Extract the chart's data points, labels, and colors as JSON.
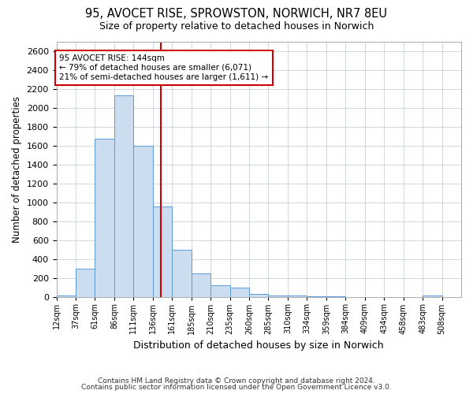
{
  "title": "95, AVOCET RISE, SPROWSTON, NORWICH, NR7 8EU",
  "subtitle": "Size of property relative to detached houses in Norwich",
  "xlabel": "Distribution of detached houses by size in Norwich",
  "ylabel": "Number of detached properties",
  "bin_labels": [
    "12sqm",
    "37sqm",
    "61sqm",
    "86sqm",
    "111sqm",
    "136sqm",
    "161sqm",
    "185sqm",
    "210sqm",
    "235sqm",
    "260sqm",
    "285sqm",
    "310sqm",
    "334sqm",
    "359sqm",
    "384sqm",
    "409sqm",
    "434sqm",
    "458sqm",
    "483sqm",
    "508sqm"
  ],
  "bar_heights": [
    20,
    300,
    1670,
    2130,
    1600,
    960,
    500,
    255,
    125,
    100,
    35,
    20,
    18,
    10,
    8,
    5,
    3,
    3,
    2,
    20,
    0
  ],
  "bar_color": "#ccddf0",
  "bar_edgecolor": "#5b9bd5",
  "property_line_bin": 5.4,
  "property_line_color": "#cc0000",
  "annotation_text_line1": "95 AVOCET RISE: 144sqm",
  "annotation_text_line2": "← 79% of detached houses are smaller (6,071)",
  "annotation_text_line3": "21% of semi-detached houses are larger (1,611) →",
  "annotation_box_edgecolor": "#cc0000",
  "annotation_box_facecolor": "#ffffff",
  "ylim": [
    0,
    2700
  ],
  "yticks": [
    0,
    200,
    400,
    600,
    800,
    1000,
    1200,
    1400,
    1600,
    1800,
    2000,
    2200,
    2400,
    2600
  ],
  "footer_line1": "Contains HM Land Registry data © Crown copyright and database right 2024.",
  "footer_line2": "Contains public sector information licensed under the Open Government Licence v3.0.",
  "background_color": "#ffffff",
  "grid_color": "#c8d0dc",
  "figsize": [
    6.0,
    5.0
  ],
  "dpi": 100
}
